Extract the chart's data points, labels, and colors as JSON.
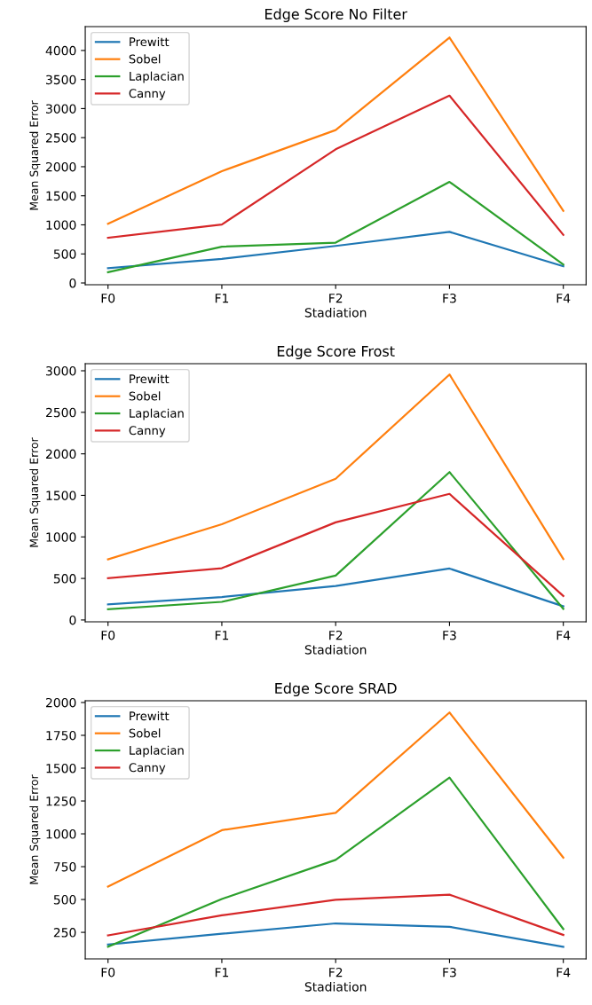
{
  "chart_data": [
    {
      "type": "line",
      "title": "Edge Score No Filter",
      "xlabel": "Stadiation",
      "ylabel": "Mean Squared Error",
      "categories": [
        "F0",
        "F1",
        "F2",
        "F3",
        "F4"
      ],
      "ylim": [
        -30,
        4410
      ],
      "yticks": [
        0,
        500,
        1000,
        1500,
        2000,
        2500,
        3000,
        3500,
        4000
      ],
      "legend": "top left",
      "grid": false,
      "series": [
        {
          "name": "Prewitt",
          "color": "#1f77b4",
          "values": [
            255,
            414,
            637,
            879,
            287
          ]
        },
        {
          "name": "Sobel",
          "color": "#ff7f0e",
          "values": [
            1019,
            1924,
            2631,
            4223,
            1242
          ]
        },
        {
          "name": "Laplacian",
          "color": "#2ca02c",
          "values": [
            185,
            624,
            694,
            1739,
            318
          ]
        },
        {
          "name": "Canny",
          "color": "#d62728",
          "values": [
            777,
            1006,
            2299,
            3223,
            828
          ]
        }
      ]
    },
    {
      "type": "line",
      "title": "Edge Score Frost",
      "xlabel": "Stadiation",
      "ylabel": "Mean Squared Error",
      "categories": [
        "F0",
        "F1",
        "F2",
        "F3",
        "F4"
      ],
      "ylim": [
        -22,
        3085
      ],
      "yticks": [
        0,
        500,
        1000,
        1500,
        2000,
        2500,
        3000
      ],
      "legend": "top left",
      "grid": false,
      "series": [
        {
          "name": "Prewitt",
          "color": "#1f77b4",
          "values": [
            187,
            276,
            410,
            619,
            165
          ]
        },
        {
          "name": "Sobel",
          "color": "#ff7f0e",
          "values": [
            730,
            1152,
            1700,
            2955,
            734
          ]
        },
        {
          "name": "Laplacian",
          "color": "#2ca02c",
          "values": [
            129,
            218,
            534,
            1780,
            134
          ]
        },
        {
          "name": "Canny",
          "color": "#d62728",
          "values": [
            503,
            623,
            1175,
            1518,
            289
          ]
        }
      ]
    },
    {
      "type": "line",
      "title": "Edge Score SRAD",
      "xlabel": "Stadiation",
      "ylabel": "Mean Squared Error",
      "categories": [
        "F0",
        "F1",
        "F2",
        "F3",
        "F4"
      ],
      "ylim": [
        48,
        2013
      ],
      "yticks": [
        250,
        500,
        750,
        1000,
        1250,
        1500,
        1750,
        2000
      ],
      "legend": "top left",
      "grid": false,
      "series": [
        {
          "name": "Prewitt",
          "color": "#1f77b4",
          "values": [
            157,
            239,
            318,
            292,
            140
          ]
        },
        {
          "name": "Sobel",
          "color": "#ff7f0e",
          "values": [
            599,
            1028,
            1160,
            1924,
            819
          ]
        },
        {
          "name": "Laplacian",
          "color": "#2ca02c",
          "values": [
            140,
            504,
            802,
            1428,
            275
          ]
        },
        {
          "name": "Canny",
          "color": "#d62728",
          "values": [
            227,
            380,
            498,
            537,
            230
          ]
        }
      ]
    }
  ]
}
